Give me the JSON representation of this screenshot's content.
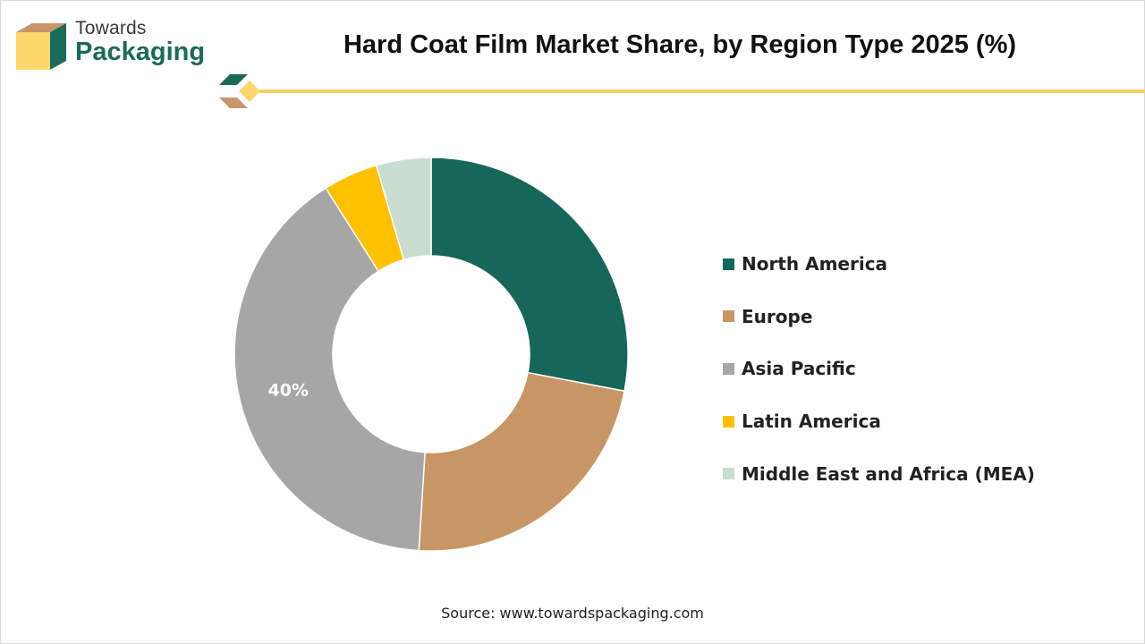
{
  "brand": {
    "line1": "Towards",
    "line2": "Packaging",
    "logo_icon": "box-icon",
    "colors": {
      "teal": "#1a6b5a",
      "tan": "#c8956a",
      "yellow": "#fcd76b"
    }
  },
  "title": "Hard Coat Film Market Share, by Region Type 2025 (%)",
  "source": "Source: www.towardspackaging.com",
  "chart_data": {
    "type": "pie",
    "variant": "donut",
    "title": "Hard Coat Film Market Share, by Region Type 2025 (%)",
    "categories": [
      "North America",
      "Europe",
      "Asia Pacific",
      "Latin America",
      "Middle East and Africa (MEA)"
    ],
    "values": [
      28,
      23,
      40,
      4.5,
      4.5
    ],
    "unit": "%",
    "data_labels": [
      "",
      "",
      "40%",
      "",
      ""
    ],
    "colors": [
      "#17665a",
      "#c89664",
      "#a6a6a6",
      "#ffc000",
      "#c9ddd0"
    ],
    "legend_position": "right"
  }
}
